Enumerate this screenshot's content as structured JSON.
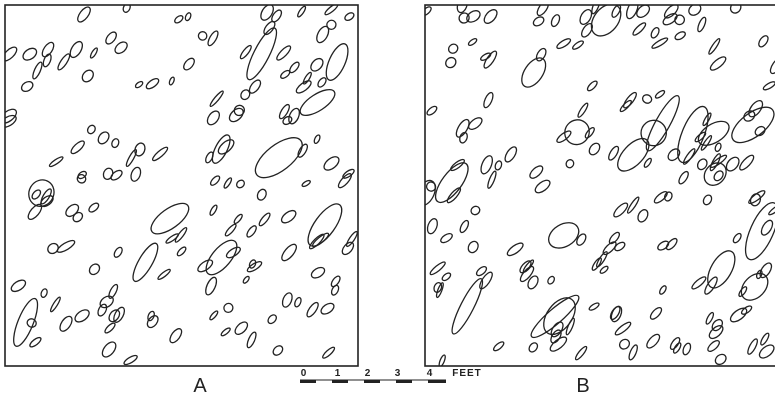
{
  "panels": [
    {
      "label": "A"
    },
    {
      "label": "B"
    }
  ],
  "scale": {
    "ticks": [
      "0",
      "1",
      "2",
      "3",
      "4"
    ],
    "unit": "FEET"
  }
}
